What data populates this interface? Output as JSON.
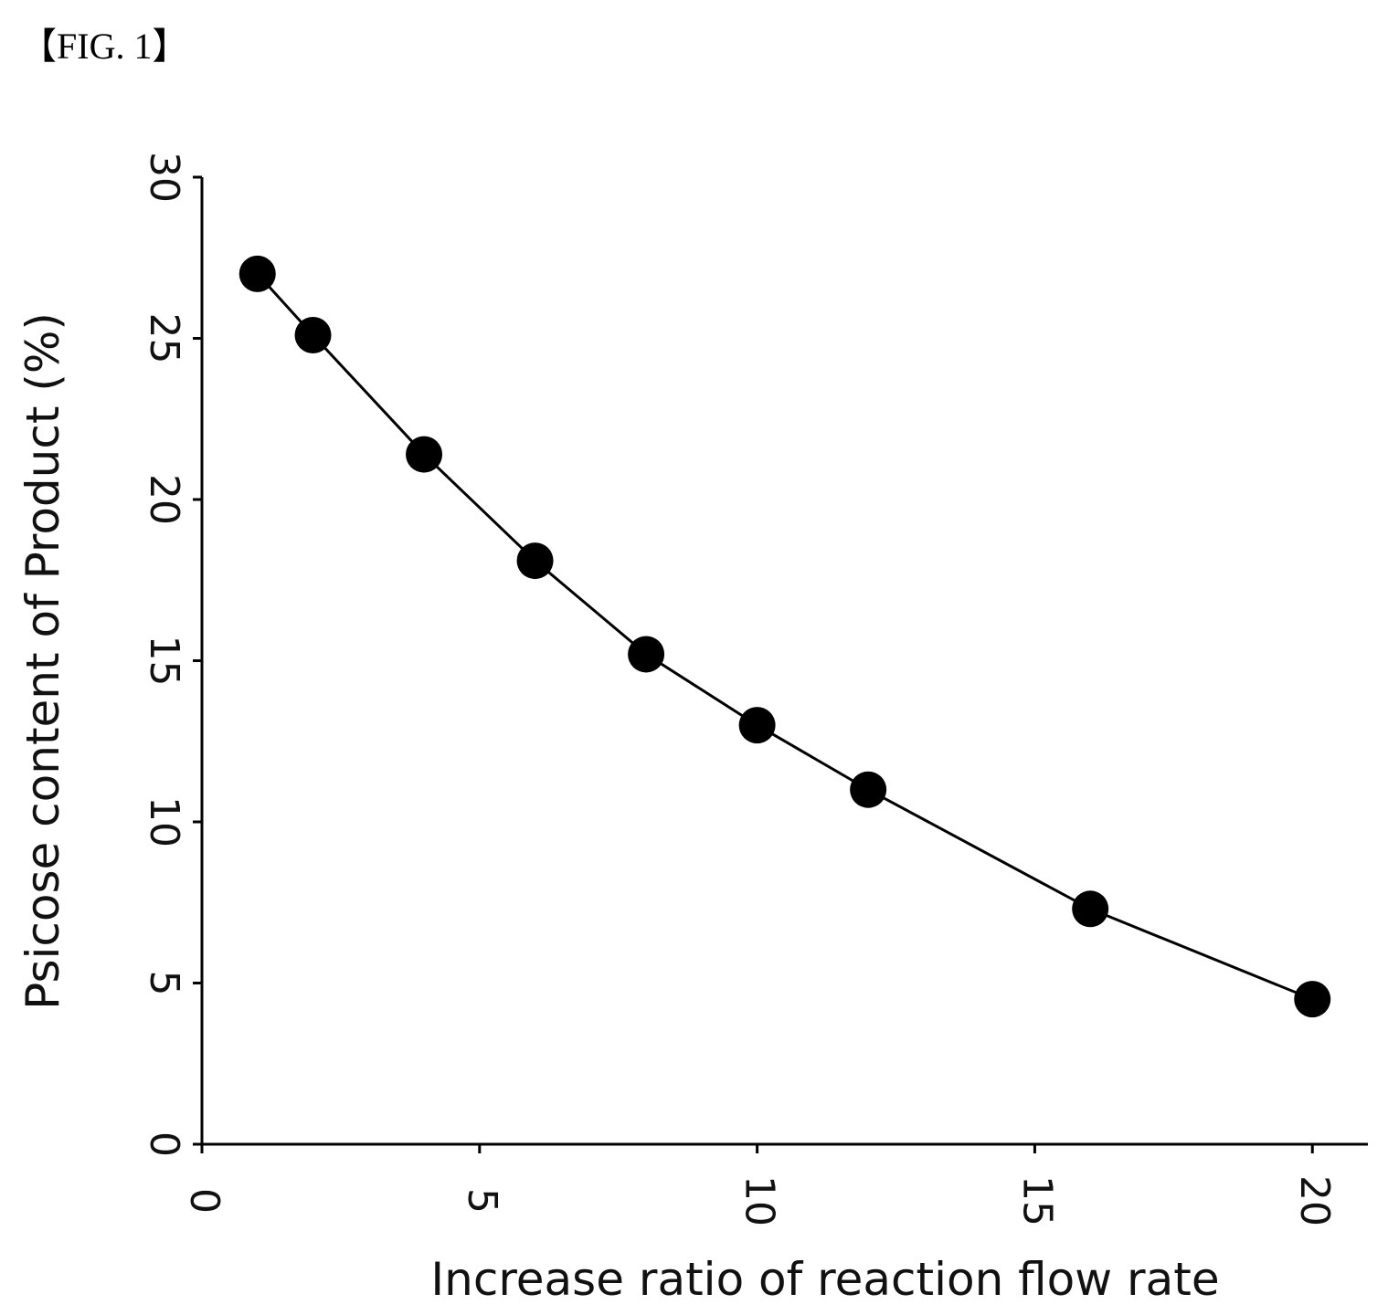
{
  "figure_label": "【FIG. 1】",
  "chart_data": {
    "type": "line",
    "title": "",
    "xlabel": "Increase ratio of reaction flow rate",
    "ylabel": "Psicose content of Product (%)",
    "xlim": [
      0,
      21
    ],
    "ylim": [
      0,
      30
    ],
    "xticks": [
      0,
      5,
      10,
      15,
      20
    ],
    "yticks": [
      0,
      5,
      10,
      15,
      20,
      25,
      30
    ],
    "grid": false,
    "series": [
      {
        "marker": "filled-circle",
        "color": "#000000",
        "x": [
          1,
          2,
          4,
          6,
          8,
          10,
          12,
          16,
          20
        ],
        "y": [
          27.0,
          25.1,
          21.4,
          18.1,
          15.2,
          13.0,
          11.0,
          7.3,
          4.5
        ]
      }
    ]
  }
}
